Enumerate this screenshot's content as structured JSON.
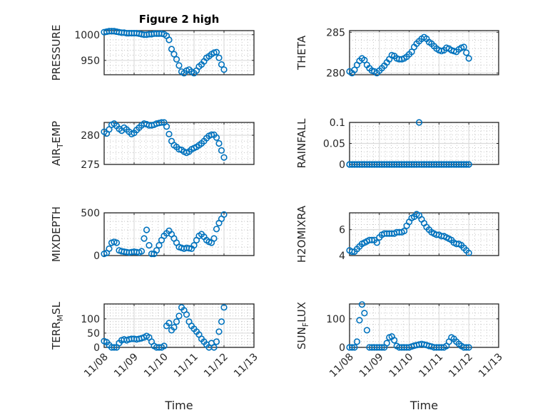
{
  "chart_data": [
    {
      "type": "scatter",
      "title": "Figure 2 high",
      "ylabel": "PRESSURE",
      "ylim": [
        922,
        1008
      ],
      "yticks": [
        950,
        1000
      ],
      "ytick_labels": [
        "950",
        "1000"
      ],
      "values": [
        1005,
        1006,
        1007,
        1007,
        1007,
        1006,
        1005,
        1004,
        1004,
        1003,
        1003,
        1003,
        1003,
        1003,
        1002,
        1001,
        1000,
        1000,
        1001,
        1001,
        1002,
        1002,
        1002,
        1002,
        1001,
        998,
        990,
        972,
        962,
        952,
        940,
        928,
        925,
        930,
        932,
        928,
        925,
        930,
        938,
        942,
        948,
        955,
        958,
        962,
        965,
        966,
        955,
        942,
        932
      ]
    },
    {
      "type": "scatter",
      "ylabel": "THETA",
      "ylim": [
        279.8,
        285.2
      ],
      "yticks": [
        280,
        285
      ],
      "ytick_labels": [
        "280",
        "285"
      ],
      "values": [
        280.2,
        280.0,
        280.4,
        281.0,
        281.5,
        281.8,
        281.6,
        281.0,
        280.6,
        280.3,
        280.2,
        280.0,
        280.3,
        280.6,
        280.9,
        281.3,
        281.7,
        282.2,
        282.1,
        281.8,
        281.7,
        281.7,
        281.8,
        282.0,
        282.3,
        282.6,
        283.2,
        283.6,
        283.9,
        284.2,
        284.4,
        284.2,
        283.8,
        283.6,
        283.3,
        283.0,
        282.8,
        282.7,
        282.8,
        283.1,
        283.0,
        282.8,
        282.7,
        282.6,
        282.9,
        283.1,
        283.2,
        282.5,
        281.8
      ]
    },
    {
      "type": "scatter",
      "ylabel": "AIR_TEMP",
      "ylim": [
        275,
        282.2
      ],
      "yticks": [
        275,
        280
      ],
      "ytick_labels": [
        "275",
        "280"
      ],
      "values": [
        280.6,
        280.3,
        281.0,
        281.8,
        282.0,
        281.6,
        281.1,
        280.8,
        281.3,
        281.0,
        280.6,
        280.2,
        280.4,
        280.9,
        281.3,
        281.7,
        282.0,
        281.9,
        281.7,
        281.7,
        281.8,
        282.0,
        282.1,
        282.2,
        282.2,
        281.5,
        280.2,
        279.0,
        278.3,
        278.0,
        277.6,
        277.5,
        277.2,
        277.0,
        277.2,
        277.6,
        277.8,
        278.0,
        278.3,
        278.6,
        279.0,
        279.5,
        279.9,
        280.1,
        280.1,
        279.6,
        278.6,
        277.4,
        276.2
      ]
    },
    {
      "type": "scatter",
      "ylabel": "RAINFALL",
      "ylim": [
        0,
        0.1
      ],
      "yticks": [
        0,
        0.05,
        0.1
      ],
      "ytick_labels": [
        "0",
        "0.05",
        "0.1"
      ],
      "values": [
        0,
        0,
        0,
        0,
        0,
        0,
        0,
        0,
        0,
        0,
        0,
        0,
        0,
        0,
        0,
        0,
        0,
        0,
        0,
        0,
        0,
        0,
        0,
        0,
        0,
        0,
        0,
        0,
        0.1,
        0,
        0,
        0,
        0,
        0,
        0,
        0,
        0,
        0,
        0,
        0,
        0,
        0,
        0,
        0,
        0,
        0,
        0,
        0,
        0
      ],
      "extra_zero_line": true
    },
    {
      "type": "scatter",
      "ylabel": "MIXDEPTH",
      "ylim": [
        0,
        500
      ],
      "yticks": [
        0,
        500
      ],
      "ytick_labels": [
        "0",
        "500"
      ],
      "values": [
        20,
        30,
        80,
        150,
        160,
        150,
        60,
        50,
        45,
        40,
        35,
        40,
        45,
        40,
        35,
        50,
        200,
        300,
        120,
        20,
        20,
        60,
        120,
        180,
        230,
        260,
        290,
        250,
        200,
        150,
        100,
        90,
        80,
        90,
        85,
        80,
        120,
        180,
        230,
        250,
        220,
        180,
        160,
        150,
        200,
        310,
        380,
        430,
        480
      ]
    },
    {
      "type": "scatter",
      "ylabel": "H2OMIXRA",
      "ylim": [
        4,
        7.3
      ],
      "yticks": [
        4,
        6
      ],
      "ytick_labels": [
        "4",
        "6"
      ],
      "values": [
        4.4,
        4.3,
        4.3,
        4.5,
        4.7,
        4.9,
        5.0,
        5.1,
        5.2,
        5.2,
        5.2,
        5.0,
        5.4,
        5.6,
        5.7,
        5.7,
        5.7,
        5.7,
        5.7,
        5.8,
        5.8,
        5.8,
        5.9,
        6.3,
        6.6,
        6.9,
        7.0,
        7.2,
        7.1,
        6.8,
        6.5,
        6.2,
        6.0,
        5.8,
        5.7,
        5.6,
        5.6,
        5.5,
        5.5,
        5.4,
        5.3,
        5.2,
        5.0,
        4.9,
        4.9,
        4.8,
        4.6,
        4.4,
        4.2
      ]
    },
    {
      "type": "scatter",
      "ylabel": "TERR_MSL",
      "ylim": [
        0,
        152
      ],
      "yticks": [
        0,
        50,
        100
      ],
      "ytick_labels": [
        "0",
        "50",
        "100"
      ],
      "values": [
        22,
        18,
        8,
        0,
        0,
        0,
        15,
        25,
        28,
        25,
        28,
        30,
        30,
        28,
        30,
        32,
        35,
        40,
        35,
        20,
        5,
        0,
        0,
        0,
        5,
        75,
        85,
        60,
        70,
        90,
        110,
        140,
        130,
        115,
        90,
        75,
        65,
        55,
        45,
        30,
        20,
        10,
        0,
        15,
        0,
        20,
        55,
        90,
        140
      ]
    },
    {
      "type": "scatter",
      "ylabel": "SUN_FLUX",
      "ylim": [
        0,
        152
      ],
      "yticks": [
        0,
        100
      ],
      "ytick_labels": [
        "0",
        "100"
      ],
      "values": [
        0,
        0,
        0,
        20,
        95,
        150,
        120,
        60,
        0,
        0,
        0,
        0,
        0,
        0,
        0,
        15,
        35,
        38,
        25,
        5,
        0,
        0,
        0,
        0,
        0,
        3,
        6,
        8,
        10,
        12,
        10,
        8,
        5,
        3,
        0,
        0,
        0,
        0,
        0,
        5,
        20,
        35,
        30,
        20,
        12,
        5,
        0,
        0,
        0
      ]
    }
  ],
  "x_axis": {
    "start": "11/08",
    "step_hours": 2,
    "xlim_days": [
      0,
      5
    ],
    "tick_labels": [
      "11/08",
      "11/09",
      "11/10",
      "11/11",
      "11/12",
      "11/13"
    ],
    "xlabel": "Time"
  },
  "colors": {
    "marker": "#0072BD",
    "axis": "#262626",
    "grid": "#dcdcdc"
  }
}
